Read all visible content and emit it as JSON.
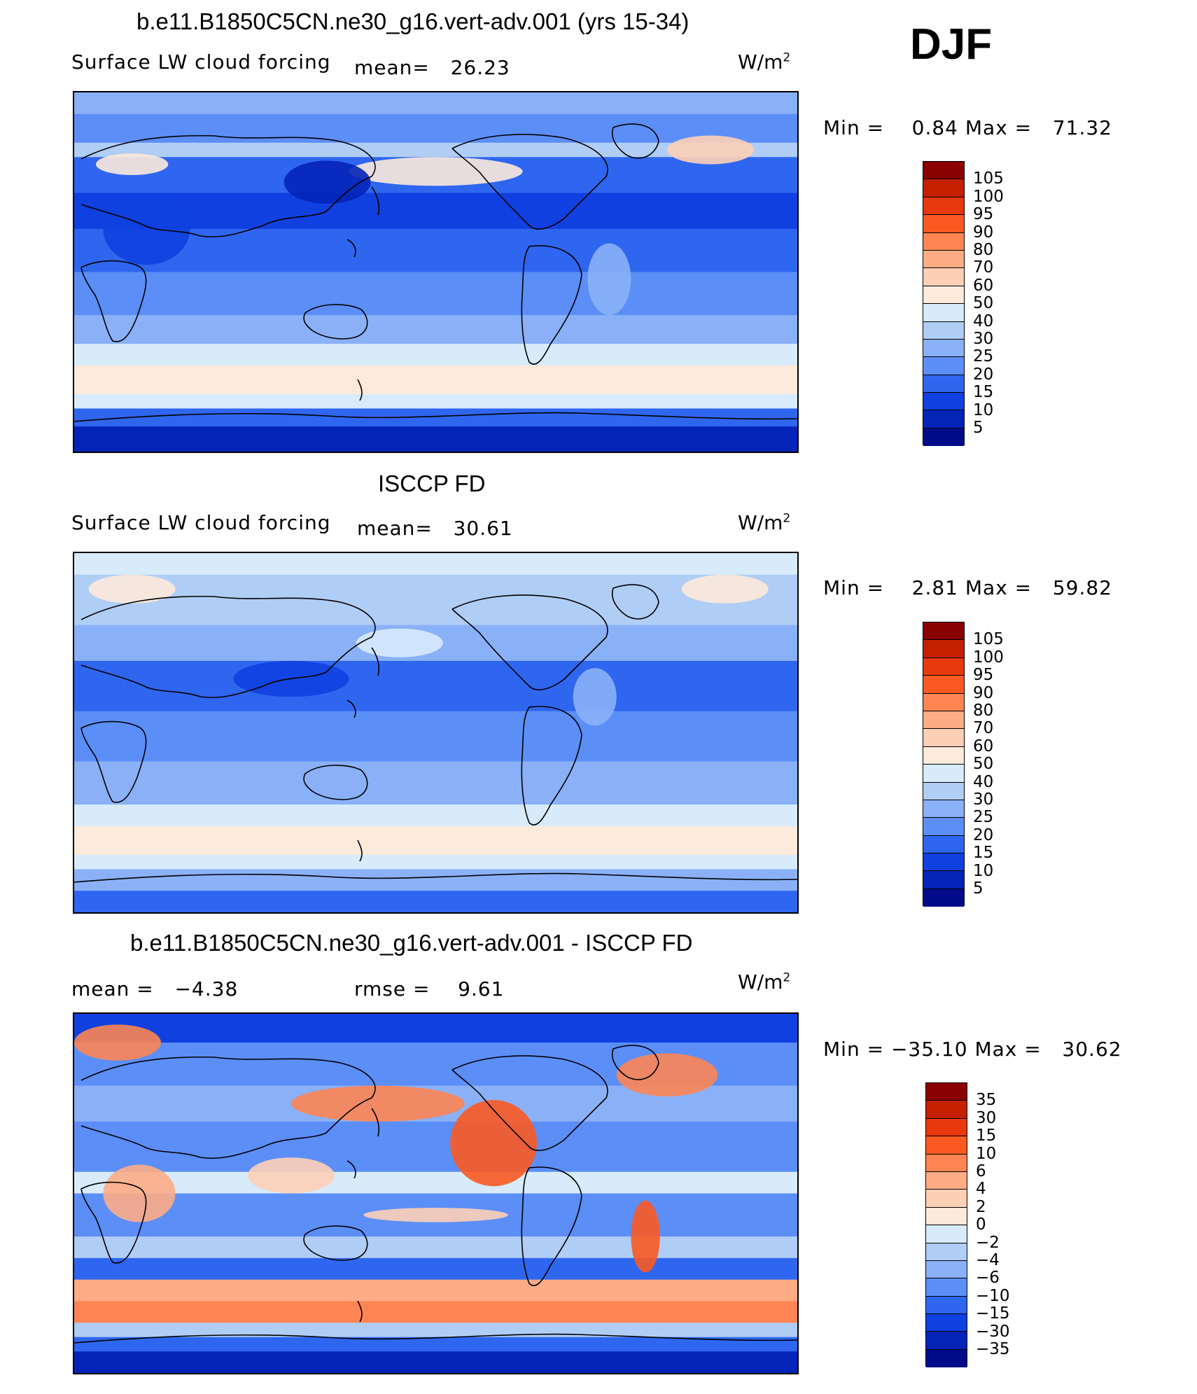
{
  "season": "DJF",
  "panels": [
    {
      "title": "b.e11.B1850C5CN.ne30_g16.vert-adv.001 (yrs 15-34)",
      "left_text": "Surface LW cloud forcing",
      "stat1": "mean=   26.23",
      "stat2": "",
      "units": "W/m",
      "minmax": "Min =    0.84 Max =   71.32",
      "levels": [
        "105",
        "100",
        "95",
        "90",
        "80",
        "70",
        "60",
        "50",
        "40",
        "30",
        "25",
        "20",
        "15",
        "10",
        "5"
      ],
      "colors": [
        "#8b0000",
        "#c42000",
        "#e8380e",
        "#fa5a22",
        "#fc8553",
        "#fdac86",
        "#fdd0b6",
        "#fdeadb",
        "#d7ebfb",
        "#b0cdf5",
        "#8ab1f7",
        "#5c8ef8",
        "#2e66f0",
        "#1040e0",
        "#0424b8",
        "#020c8a"
      ],
      "palette": "abs"
    },
    {
      "title": "ISCCP FD",
      "left_text": "Surface LW cloud forcing",
      "stat1": "mean=   30.61",
      "stat2": "",
      "units": "W/m",
      "minmax": "Min =    2.81 Max =   59.82",
      "levels": [
        "105",
        "100",
        "95",
        "90",
        "80",
        "70",
        "60",
        "50",
        "40",
        "30",
        "25",
        "20",
        "15",
        "10",
        "5"
      ],
      "colors": [
        "#8b0000",
        "#c42000",
        "#e8380e",
        "#fa5a22",
        "#fc8553",
        "#fdac86",
        "#fdd0b6",
        "#fdeadb",
        "#d7ebfb",
        "#b0cdf5",
        "#8ab1f7",
        "#5c8ef8",
        "#2e66f0",
        "#1040e0",
        "#0424b8",
        "#020c8a"
      ],
      "palette": "obs"
    },
    {
      "title": "b.e11.B1850C5CN.ne30_g16.vert-adv.001 - ISCCP FD",
      "left_text": "mean =   −4.38",
      "stat1": "",
      "stat2": "rmse =    9.61",
      "units": "W/m",
      "minmax": "Min = −35.10 Max =   30.62",
      "levels": [
        "35",
        "30",
        "15",
        "10",
        "6",
        "4",
        "2",
        "0",
        "−2",
        "−4",
        "−6",
        "−10",
        "−15",
        "−30",
        "−35"
      ],
      "colors": [
        "#8b0000",
        "#c42000",
        "#e8380e",
        "#fa5a22",
        "#fc8553",
        "#fdac86",
        "#fdd0b6",
        "#fdeadb",
        "#d7ebfb",
        "#b0cdf5",
        "#8ab1f7",
        "#5c8ef8",
        "#2e66f0",
        "#1040e0",
        "#0424b8",
        "#020c8a"
      ],
      "palette": "diff"
    }
  ]
}
